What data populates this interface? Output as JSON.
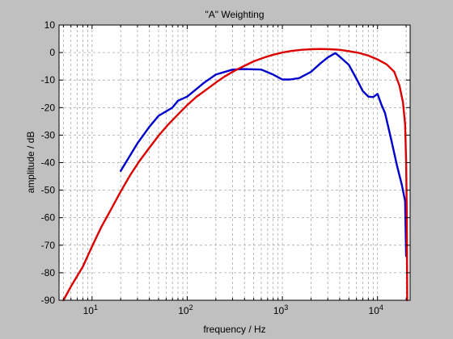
{
  "chart_data": {
    "type": "line",
    "title": "\"A\" Weighting",
    "xlabel": "frequency / Hz",
    "ylabel": "amplitude / dB",
    "x_scale": "log",
    "xlim": [
      4.5,
      22000
    ],
    "ylim": [
      -90,
      10
    ],
    "grid": true,
    "x_ticks": [
      {
        "value": 10,
        "base": "10",
        "exp": "1"
      },
      {
        "value": 100,
        "base": "10",
        "exp": "2"
      },
      {
        "value": 1000,
        "base": "10",
        "exp": "3"
      },
      {
        "value": 10000,
        "base": "10",
        "exp": "4"
      }
    ],
    "y_ticks": [
      10,
      0,
      -10,
      -20,
      -30,
      -40,
      -50,
      -60,
      -70,
      -80,
      -90
    ],
    "series": [
      {
        "color": "#0000cc",
        "x": [
          20,
          30,
          40,
          50,
          70,
          80,
          100,
          150,
          200,
          300,
          400,
          600,
          800,
          1000,
          1200,
          1500,
          2000,
          2500,
          3000,
          3600,
          4000,
          5000,
          6000,
          7000,
          8000,
          9000,
          10000,
          11000,
          12000,
          14000,
          16000,
          18000,
          19500,
          20000
        ],
        "y": [
          -43,
          -33,
          -27,
          -23,
          -20,
          -17.5,
          -16,
          -11,
          -8,
          -6.2,
          -6,
          -6.2,
          -8,
          -9.8,
          -9.8,
          -9.3,
          -7,
          -4,
          -1.8,
          -0.2,
          -1.5,
          -4.5,
          -9.5,
          -14,
          -16,
          -16.2,
          -15,
          -19,
          -22,
          -32,
          -41,
          -48,
          -54,
          -74
        ]
      },
      {
        "color": "#dd0000",
        "x": [
          5,
          6,
          8,
          10,
          12.5,
          16,
          20,
          25,
          31.5,
          40,
          50,
          63,
          80,
          100,
          125,
          160,
          200,
          250,
          315,
          400,
          500,
          630,
          800,
          1000,
          1250,
          1600,
          2000,
          2500,
          3150,
          4000,
          5000,
          6300,
          8000,
          10000,
          12500,
          15000,
          17000,
          18500,
          19500,
          20000,
          20300,
          20500
        ],
        "y": [
          -90,
          -85,
          -77.8,
          -70.4,
          -63.4,
          -56.7,
          -50.5,
          -44.7,
          -39.4,
          -34.6,
          -30.2,
          -26.2,
          -22.5,
          -19.1,
          -16.1,
          -13.4,
          -10.9,
          -8.6,
          -6.6,
          -4.8,
          -3.2,
          -1.9,
          -0.8,
          0,
          0.6,
          1.0,
          1.2,
          1.3,
          1.2,
          1.0,
          0.5,
          -0.1,
          -1.1,
          -2.5,
          -4.3,
          -7,
          -12,
          -18,
          -26,
          -40,
          -60,
          -90
        ]
      }
    ]
  }
}
